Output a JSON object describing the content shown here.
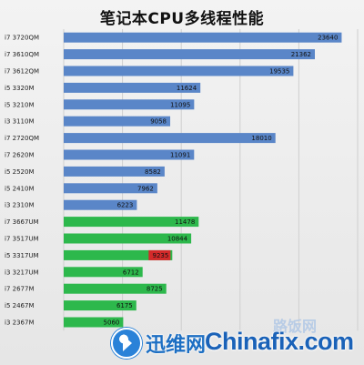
{
  "chart_data": {
    "type": "bar",
    "orientation": "horizontal",
    "title": "笔记本CPU多线程性能",
    "xlabel": "",
    "ylabel": "",
    "xlim": [
      0,
      25000
    ],
    "grid": true,
    "categories": [
      "i7 3720QM",
      "i7 3610QM",
      "i7 3612QM",
      "i5 3320M",
      "i5 3210M",
      "i3 3110M",
      "i7 2720QM",
      "i7 2620M",
      "i5 2520M",
      "i5 2410M",
      "i3 2310M",
      "i7 3667UM",
      "i7 3517UM",
      "i5 3317UM",
      "i3 3217UM",
      "i7 2677M",
      "i5 2467M",
      "i3 2367M"
    ],
    "values": [
      23640,
      21362,
      19535,
      11624,
      11095,
      9058,
      18010,
      11091,
      8582,
      7962,
      6223,
      11478,
      10844,
      9235,
      6712,
      8725,
      6175,
      5060
    ],
    "value_labels": [
      "23640",
      "21362",
      "19535",
      "11624",
      "11095",
      "9058",
      "18010",
      "11091",
      "8582",
      "7962",
      "6223",
      "11478",
      "10844",
      "9235",
      "6712",
      "8725",
      "6175",
      "5060"
    ],
    "bar_colors": [
      "#5a86c8",
      "#5a86c8",
      "#5a86c8",
      "#5a86c8",
      "#5a86c8",
      "#5a86c8",
      "#5a86c8",
      "#5a86c8",
      "#5a86c8",
      "#5a86c8",
      "#5a86c8",
      "#2db84c",
      "#2db84c",
      "#2db84c",
      "#2db84c",
      "#2db84c",
      "#2db84c",
      "#2db84c"
    ],
    "highlight_index": 13,
    "highlight_color": "#d42a2a"
  },
  "watermark": {
    "left_text": "迅维网",
    "right_text": "Chinafix.com",
    "right_small_text": "路饭网"
  }
}
